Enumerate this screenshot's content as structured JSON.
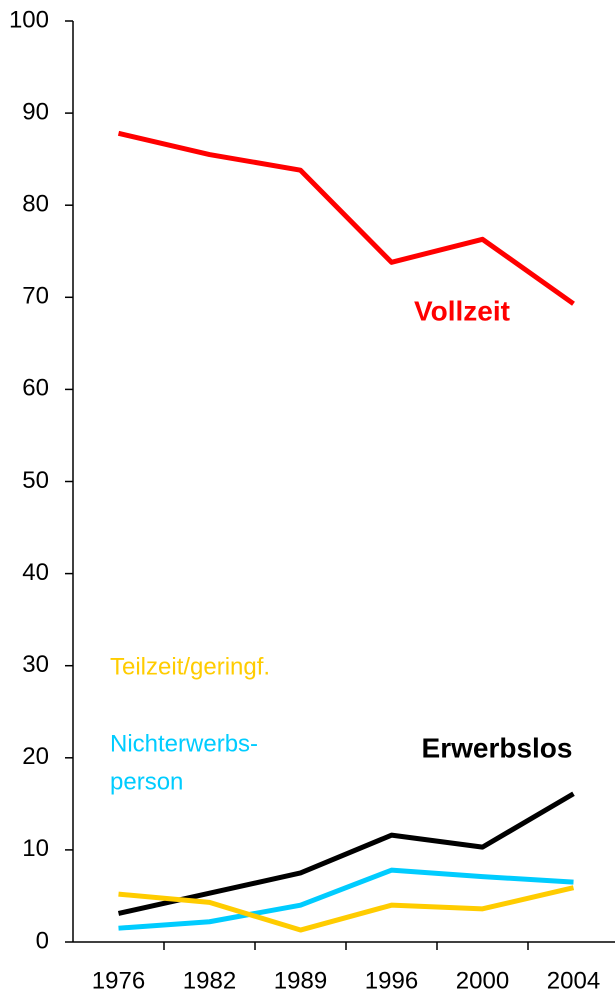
{
  "chart_data": {
    "type": "line",
    "categories": [
      "1976",
      "1982",
      "1989",
      "1996",
      "2000",
      "2004"
    ],
    "series": [
      {
        "name": "Vollzeit",
        "color": "#ff0000",
        "values": [
          87.8,
          85.5,
          83.8,
          73.8,
          76.3,
          69.3
        ]
      },
      {
        "name": "Erwerbslos",
        "color": "#000000",
        "values": [
          3.1,
          5.3,
          7.5,
          11.6,
          10.3,
          16.1
        ]
      },
      {
        "name": [
          "Nichterwerbs-",
          "person"
        ],
        "color": "#00ccff",
        "values": [
          1.5,
          2.2,
          4.0,
          7.8,
          7.1,
          6.5
        ]
      },
      {
        "name": "Teilzeit/geringf.",
        "color": "#ffcc00",
        "values": [
          5.2,
          4.3,
          1.3,
          4.0,
          3.6,
          5.9
        ]
      }
    ],
    "ylim": [
      0,
      100
    ],
    "yticks": [
      0,
      10,
      20,
      30,
      40,
      50,
      60,
      70,
      80,
      90,
      100
    ],
    "grid": false
  }
}
